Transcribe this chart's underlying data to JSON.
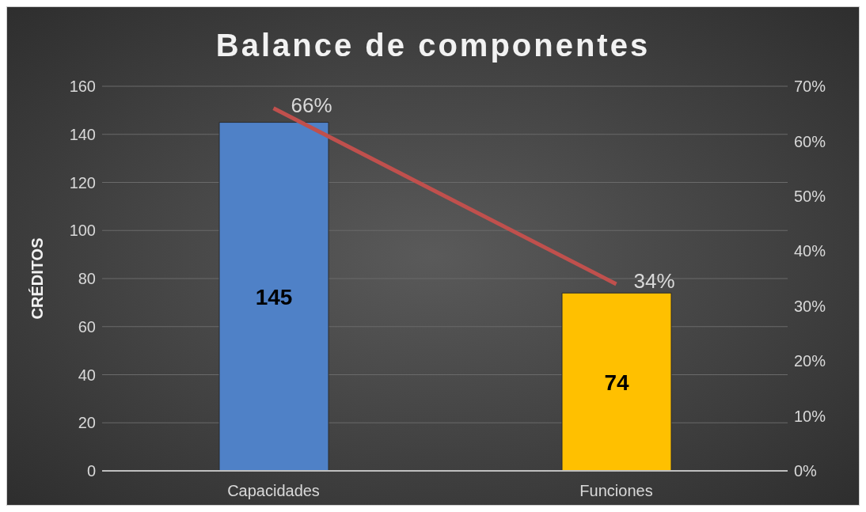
{
  "chart_data": {
    "type": "bar",
    "title": "Balance de componentes",
    "ylabel": "CRÉDITOS",
    "categories": [
      "Capacidades",
      "Funciones"
    ],
    "series": [
      {
        "colors": [
          "#4f81c7",
          "#ffc000"
        ],
        "values": [
          145,
          74
        ],
        "data_labels": true
      },
      {
        "type": "line",
        "axis": "y2",
        "color": "#c0504d",
        "values": [
          66,
          34
        ],
        "value_labels": [
          "66%",
          "34%"
        ]
      }
    ],
    "ylim": [
      0,
      160
    ],
    "yticks": [
      0,
      20,
      40,
      60,
      80,
      100,
      120,
      140,
      160
    ],
    "y2lim": [
      0,
      70
    ],
    "y2ticks": [
      {
        "value": 0,
        "label": "0%"
      },
      {
        "value": 10,
        "label": "10%"
      },
      {
        "value": 20,
        "label": "20%"
      },
      {
        "value": 30,
        "label": "30%"
      },
      {
        "value": 40,
        "label": "40%"
      },
      {
        "value": 50,
        "label": "50%"
      },
      {
        "value": 60,
        "label": "60%"
      },
      {
        "value": 70,
        "label": "70%"
      }
    ],
    "grid": "y",
    "legend": false
  }
}
